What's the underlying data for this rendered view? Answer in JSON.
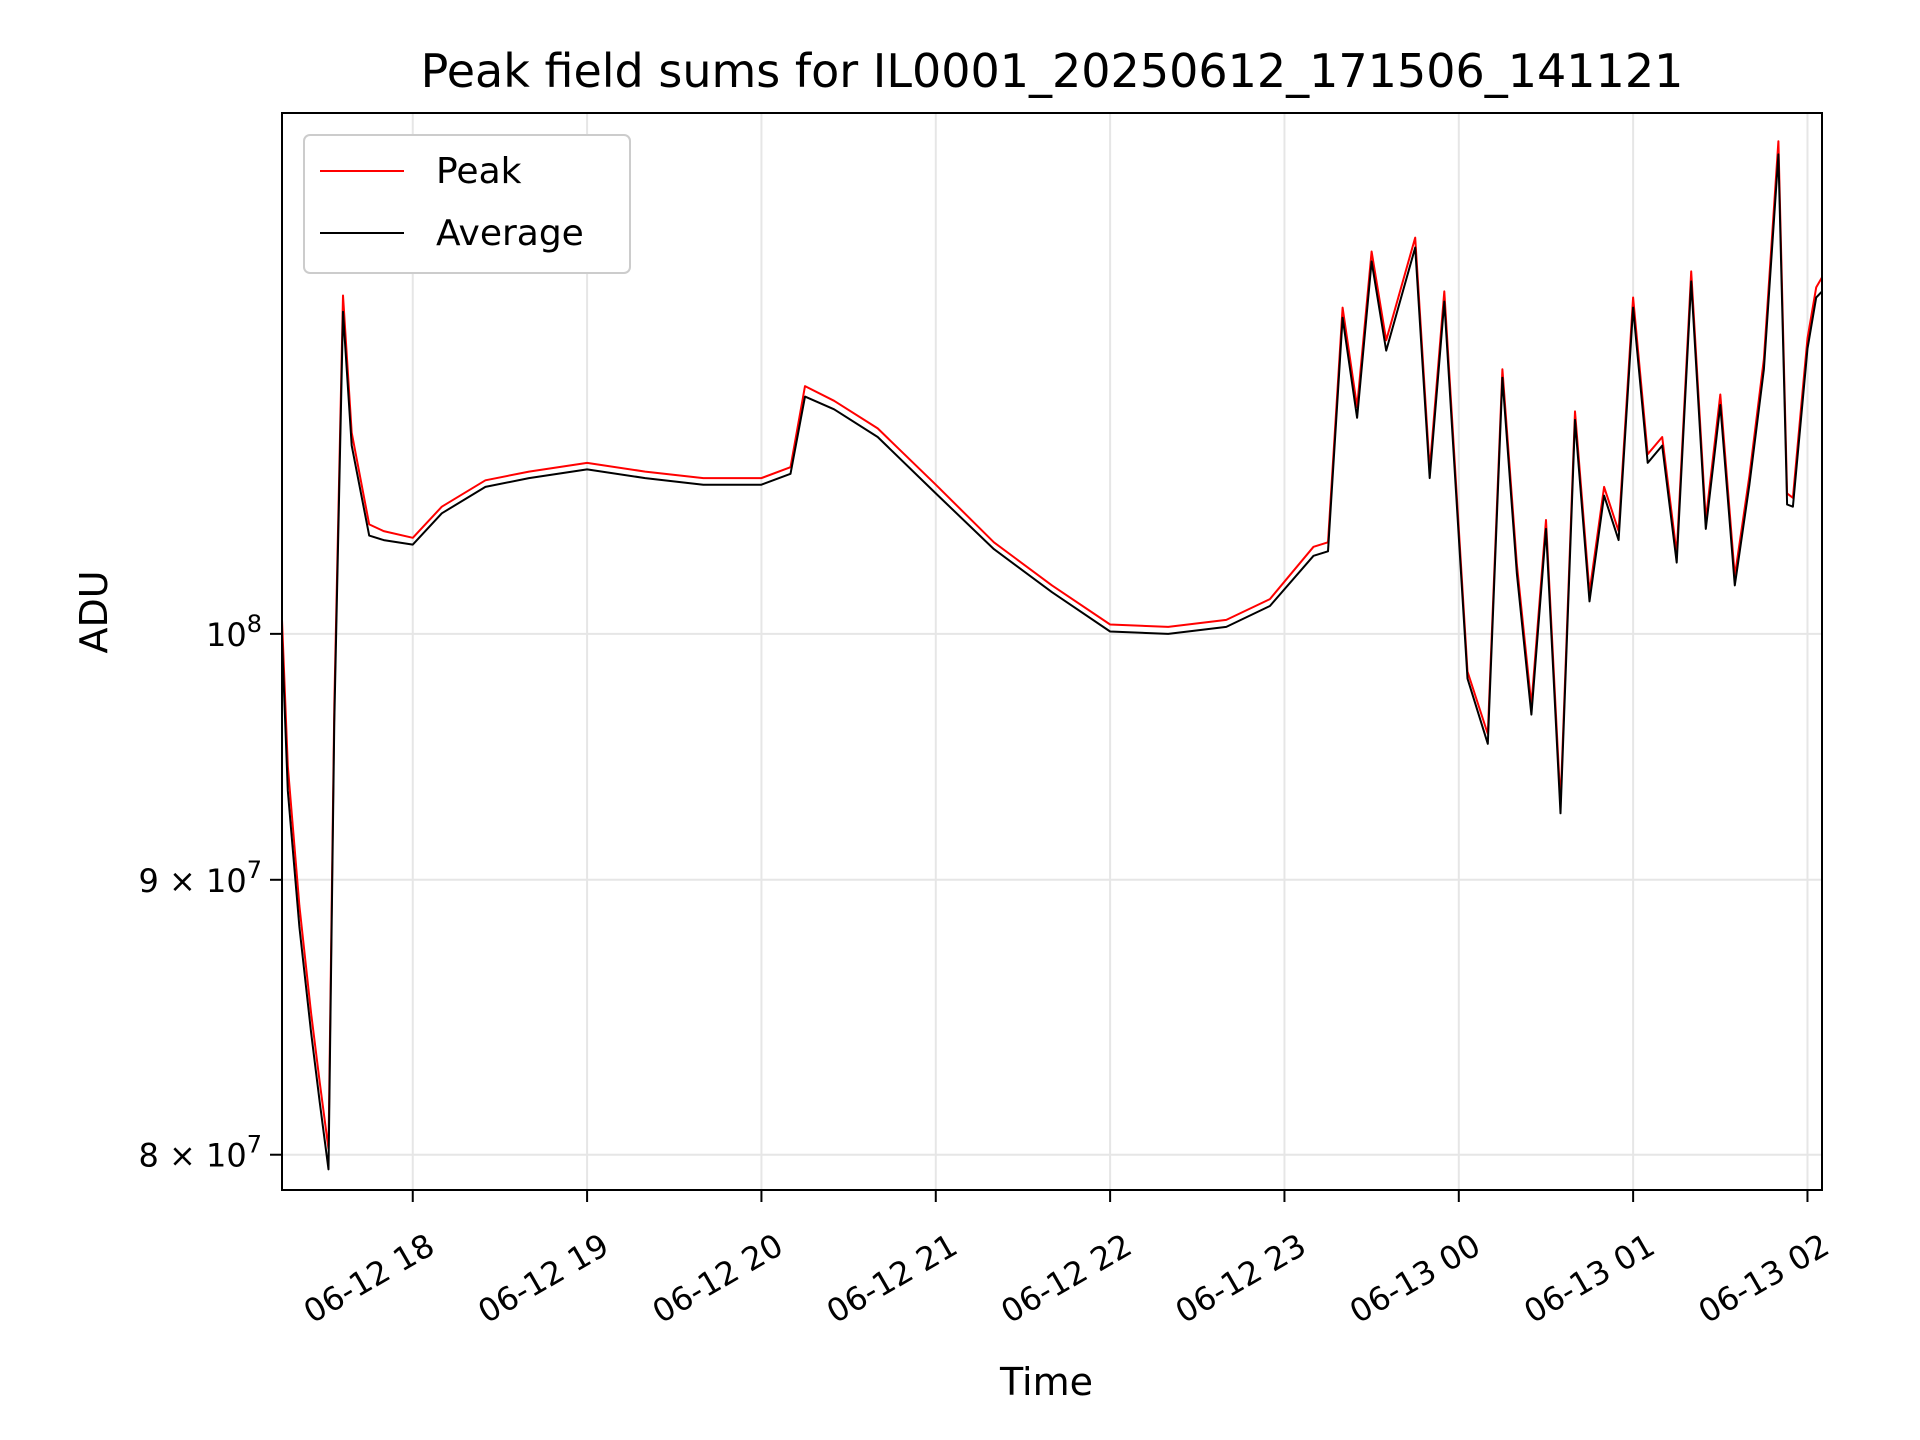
{
  "chart_data": {
    "type": "line",
    "title": "Peak field sums for IL0001_20250612_171506_141121",
    "xlabel": "Time",
    "ylabel": "ADU",
    "x_axis": {
      "kind": "time",
      "range": [
        "2025-06-12 17:15",
        "2025-06-13 02:05"
      ],
      "ticks": [
        "2025-06-12 18:00",
        "2025-06-12 19:00",
        "2025-06-12 20:00",
        "2025-06-12 21:00",
        "2025-06-12 22:00",
        "2025-06-12 23:00",
        "2025-06-13 00:00",
        "2025-06-13 01:00",
        "2025-06-13 02:00"
      ],
      "tick_labels": [
        "06-12 18",
        "06-12 19",
        "06-12 20",
        "06-12 21",
        "06-12 22",
        "06-12 23",
        "06-13 00",
        "06-13 01",
        "06-13 02"
      ]
    },
    "y_axis": {
      "scale": "log",
      "range": [
        78800000,
        125000000
      ],
      "ticks": [
        80000000,
        90000000,
        100000000
      ],
      "tick_labels": [
        {
          "mant": "8",
          "times": "×",
          "base": "10",
          "exp": "7"
        },
        {
          "mant": "9",
          "times": "×",
          "base": "10",
          "exp": "7"
        },
        {
          "mant": "",
          "times": "",
          "base": "10",
          "exp": "8"
        }
      ]
    },
    "grid": true,
    "legend_position": "top-left",
    "series": [
      {
        "name": "Peak",
        "color": "#ff0000",
        "x": [
          "2025-06-12 17:15",
          "2025-06-12 17:17",
          "2025-06-12 17:21",
          "2025-06-12 17:25",
          "2025-06-12 17:28",
          "2025-06-12 17:31",
          "2025-06-12 17:33",
          "2025-06-12 17:36",
          "2025-06-12 17:39",
          "2025-06-12 17:45",
          "2025-06-12 17:50",
          "2025-06-12 18:00",
          "2025-06-12 18:10",
          "2025-06-12 18:25",
          "2025-06-12 18:40",
          "2025-06-12 19:00",
          "2025-06-12 19:20",
          "2025-06-12 19:40",
          "2025-06-12 20:00",
          "2025-06-12 20:10",
          "2025-06-12 20:15",
          "2025-06-12 20:25",
          "2025-06-12 20:40",
          "2025-06-12 21:00",
          "2025-06-12 21:20",
          "2025-06-12 21:40",
          "2025-06-12 22:00",
          "2025-06-12 22:20",
          "2025-06-12 22:40",
          "2025-06-12 22:55",
          "2025-06-12 23:10",
          "2025-06-12 23:15",
          "2025-06-12 23:20",
          "2025-06-12 23:25",
          "2025-06-12 23:30",
          "2025-06-12 23:35",
          "2025-06-12 23:45",
          "2025-06-12 23:50",
          "2025-06-12 23:55",
          "2025-06-13 00:03",
          "2025-06-13 00:10",
          "2025-06-13 00:15",
          "2025-06-13 00:20",
          "2025-06-13 00:25",
          "2025-06-13 00:30",
          "2025-06-13 00:35",
          "2025-06-13 00:40",
          "2025-06-13 00:45",
          "2025-06-13 00:50",
          "2025-06-13 00:55",
          "2025-06-13 01:00",
          "2025-06-13 01:05",
          "2025-06-13 01:10",
          "2025-06-13 01:15",
          "2025-06-13 01:20",
          "2025-06-13 01:25",
          "2025-06-13 01:30",
          "2025-06-13 01:35",
          "2025-06-13 01:40",
          "2025-06-13 01:45",
          "2025-06-13 01:50",
          "2025-06-13 01:53",
          "2025-06-13 01:55",
          "2025-06-13 01:58",
          "2025-06-13 02:00",
          "2025-06-13 02:03",
          "2025-06-13 02:05"
        ],
        "y": [
          100600000,
          94500000,
          89000000,
          85000000,
          82500000,
          80200000,
          97000000,
          115600000,
          109000000,
          104800000,
          104500000,
          104200000,
          105600000,
          106800000,
          107200000,
          107600000,
          107200000,
          106900000,
          106900000,
          107400000,
          111200000,
          110500000,
          109200000,
          106600000,
          104000000,
          102100000,
          100400000,
          100300000,
          100600000,
          101500000,
          103800000,
          104000000,
          115000000,
          110200000,
          117800000,
          113400000,
          118500000,
          107300000,
          115800000,
          98400000,
          95800000,
          112000000,
          103000000,
          97000000,
          105000000,
          93000000,
          110000000,
          101800000,
          106500000,
          104500000,
          115500000,
          108000000,
          108800000,
          103500000,
          116800000,
          105000000,
          110800000,
          102500000,
          107000000,
          112500000,
          123500000,
          106200000,
          106000000,
          110500000,
          113500000,
          116000000,
          116500000
        ]
      },
      {
        "name": "Average",
        "color": "#000000",
        "x": [
          "2025-06-12 17:15",
          "2025-06-12 17:17",
          "2025-06-12 17:21",
          "2025-06-12 17:25",
          "2025-06-12 17:28",
          "2025-06-12 17:31",
          "2025-06-12 17:33",
          "2025-06-12 17:36",
          "2025-06-12 17:39",
          "2025-06-12 17:45",
          "2025-06-12 17:50",
          "2025-06-12 18:00",
          "2025-06-12 18:10",
          "2025-06-12 18:25",
          "2025-06-12 18:40",
          "2025-06-12 19:00",
          "2025-06-12 19:20",
          "2025-06-12 19:40",
          "2025-06-12 20:00",
          "2025-06-12 20:10",
          "2025-06-12 20:15",
          "2025-06-12 20:25",
          "2025-06-12 20:40",
          "2025-06-12 21:00",
          "2025-06-12 21:20",
          "2025-06-12 21:40",
          "2025-06-12 22:00",
          "2025-06-12 22:20",
          "2025-06-12 22:40",
          "2025-06-12 22:55",
          "2025-06-12 23:10",
          "2025-06-12 23:15",
          "2025-06-12 23:20",
          "2025-06-12 23:25",
          "2025-06-12 23:30",
          "2025-06-12 23:35",
          "2025-06-12 23:45",
          "2025-06-12 23:50",
          "2025-06-12 23:55",
          "2025-06-13 00:03",
          "2025-06-13 00:10",
          "2025-06-13 00:15",
          "2025-06-13 00:20",
          "2025-06-13 00:25",
          "2025-06-13 00:30",
          "2025-06-13 00:35",
          "2025-06-13 00:40",
          "2025-06-13 00:45",
          "2025-06-13 00:50",
          "2025-06-13 00:55",
          "2025-06-13 01:00",
          "2025-06-13 01:05",
          "2025-06-13 01:10",
          "2025-06-13 01:15",
          "2025-06-13 01:20",
          "2025-06-13 01:25",
          "2025-06-13 01:30",
          "2025-06-13 01:35",
          "2025-06-13 01:40",
          "2025-06-13 01:45",
          "2025-06-13 01:50",
          "2025-06-13 01:53",
          "2025-06-13 01:55",
          "2025-06-13 01:58",
          "2025-06-13 02:00",
          "2025-06-13 02:03",
          "2025-06-13 02:05"
        ],
        "y": [
          99800000,
          93500000,
          88200000,
          84300000,
          81800000,
          79500000,
          96300000,
          114800000,
          108400000,
          104300000,
          104100000,
          103900000,
          105300000,
          106500000,
          106900000,
          107300000,
          106900000,
          106600000,
          106600000,
          107100000,
          110700000,
          110100000,
          108800000,
          106200000,
          103700000,
          101800000,
          100100000,
          100000000,
          100300000,
          101200000,
          103400000,
          103600000,
          114500000,
          109700000,
          117300000,
          112900000,
          118000000,
          106900000,
          115300000,
          98100000,
          95400000,
          111600000,
          102600000,
          96600000,
          104600000,
          92600000,
          109600000,
          101400000,
          106100000,
          104100000,
          115000000,
          107600000,
          108400000,
          103100000,
          116300000,
          104600000,
          110300000,
          102100000,
          106600000,
          112000000,
          122800000,
          105700000,
          105600000,
          110000000,
          113000000,
          115500000,
          115800000
        ]
      }
    ]
  }
}
